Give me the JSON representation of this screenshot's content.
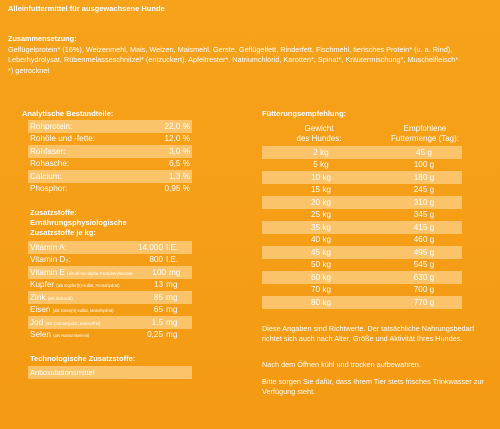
{
  "title": "Alleinfuttermittel für ausgewachsene Hunde",
  "ingredients": {
    "heading": "Zusammensetzung:",
    "text": "Geflügelprotein* (16%), Weizenmehl, Mais, Weizen, Maismehl, Gerste, Geflügelfett, Rinderfett, Fischmehl, tierisches Protein* (u. a. Rind), Leberhydrolysat, Rübenmelasseschnitzel* (entzuckert), Apfeltrester*, Natriumchlorid, Karotten*, Spinat*, Kräutermischung*, Muschelfleisch*",
    "footnote": "*) getrocknet"
  },
  "analytics": {
    "heading": "Analytische Bestandteile:",
    "rows": [
      {
        "label": "Rohprotein:",
        "value": "22,0 %"
      },
      {
        "label": "Rohöle und -fette:",
        "value": "12,0 %"
      },
      {
        "label": "Rohfaser:",
        "value": "3,0 %"
      },
      {
        "label": "Rohasche:",
        "value": "6,5 %"
      },
      {
        "label": "Calcium:",
        "value": "1,3 %"
      },
      {
        "label": "Phosphor:",
        "value": "0,95 %"
      }
    ]
  },
  "additives": {
    "heading1": "Zusatzstoffe:",
    "heading2": "Ernährungsphysiologische",
    "heading3": "Zusatzstoffe je kg:",
    "rows": [
      {
        "label": "Vitamin A:",
        "note": "",
        "num": "14.000",
        "unit": "I.E."
      },
      {
        "label": "Vitamin D₃:",
        "note": "",
        "num": "800",
        "unit": "I.E."
      },
      {
        "label": "Vitamin E",
        "note": "(als all-rac-alpha-Tocopherylacetat)",
        "num": "100",
        "unit": "mg"
      },
      {
        "label": "Kupfer",
        "note": "(als Kupfer(II)-sulfat, Pentahydrat)",
        "num": "13",
        "unit": "mg"
      },
      {
        "label": "Zink",
        "note": "(als Zinkoxid)",
        "num": "85",
        "unit": "mg"
      },
      {
        "label": "Eisen",
        "note": "(als Eisen(II)-sulfat, Monohydrat)",
        "num": "65",
        "unit": "mg"
      },
      {
        "label": "Jod",
        "note": "(als Calciumjodat, wasserfrei)",
        "num": "1,5",
        "unit": "mg"
      },
      {
        "label": "Selen",
        "note": "(als Natriumselenit)",
        "num": "0,25",
        "unit": "mg"
      }
    ]
  },
  "technological": {
    "heading": "Technologische Zusatzstoffe:",
    "value": "Antioxidationsmittel"
  },
  "feeding": {
    "heading": "Fütterungsempfehlung:",
    "col1_line1": "Gewicht",
    "col1_line2": "des Hundes:",
    "col2_line1": "Empfohlene",
    "col2_line2": "Futtermenge (Tag):",
    "rows": [
      {
        "weight": "2 kg",
        "amount": "45 g"
      },
      {
        "weight": "5 kg",
        "amount": "100 g"
      },
      {
        "weight": "10 kg",
        "amount": "180 g"
      },
      {
        "weight": "15 kg",
        "amount": "245 g"
      },
      {
        "weight": "20 kg",
        "amount": "310 g"
      },
      {
        "weight": "25 kg",
        "amount": "345 g"
      },
      {
        "weight": "35 kg",
        "amount": "415 g"
      },
      {
        "weight": "40 kg",
        "amount": "460 g"
      },
      {
        "weight": "45 kg",
        "amount": "495 g"
      },
      {
        "weight": "50 kg",
        "amount": "545 g"
      },
      {
        "weight": "60 kg",
        "amount": "630 g"
      },
      {
        "weight": "70 kg",
        "amount": "700 g"
      },
      {
        "weight": "80 kg",
        "amount": "770 g"
      }
    ],
    "note1": "Diese Angaben sind Richtwerte. Der tatsächliche Nahrungsbedarf richtet sich auch nach Alter, Größe und Aktivität Ihres Hundes.",
    "note2": "Nach dem Öffnen kühl und trocken aufbewahren.",
    "note3": "Bitte sorgen Sie dafür, dass Ihrem Tier stets frisches Trinkwasser zur Verfügung steht."
  }
}
